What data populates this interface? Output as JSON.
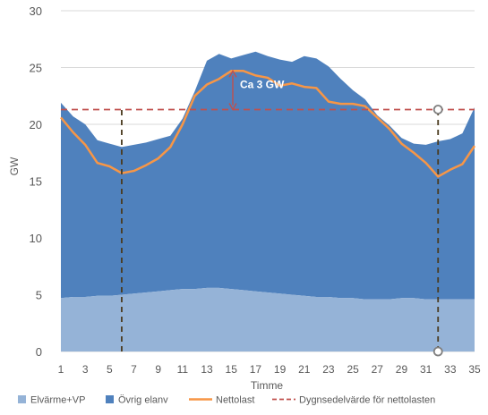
{
  "chart_data": {
    "type": "area",
    "xlabel": "Timme",
    "ylabel": "GW",
    "xlim": [
      1,
      35
    ],
    "ylim": [
      0,
      30
    ],
    "y_ticks": [
      0,
      5,
      10,
      15,
      20,
      25,
      30
    ],
    "x_ticks": [
      1,
      3,
      5,
      7,
      9,
      11,
      13,
      15,
      17,
      19,
      21,
      23,
      25,
      27,
      29,
      31,
      33,
      35
    ],
    "grid": "horizontal",
    "legend_position": "bottom",
    "x": [
      1,
      2,
      3,
      4,
      5,
      6,
      7,
      8,
      9,
      10,
      11,
      12,
      13,
      14,
      15,
      16,
      17,
      18,
      19,
      20,
      21,
      22,
      23,
      24,
      25,
      26,
      27,
      28,
      29,
      30,
      31,
      32,
      33,
      34,
      35
    ],
    "series": [
      {
        "name": "Elvärme+VP",
        "kind": "area",
        "color": "#95b3d7",
        "values": [
          4.7,
          4.8,
          4.8,
          4.9,
          4.9,
          5.0,
          5.1,
          5.2,
          5.3,
          5.4,
          5.5,
          5.5,
          5.6,
          5.6,
          5.5,
          5.4,
          5.3,
          5.2,
          5.1,
          5.0,
          4.9,
          4.8,
          4.8,
          4.7,
          4.7,
          4.6,
          4.6,
          4.6,
          4.7,
          4.7,
          4.6,
          4.6,
          4.6,
          4.6,
          4.6
        ]
      },
      {
        "name": "Övrig elanv",
        "kind": "area",
        "color": "#4f81bd",
        "values": [
          17.2,
          15.9,
          15.2,
          13.7,
          13.4,
          13.0,
          13.1,
          13.2,
          13.4,
          13.6,
          15.0,
          17.4,
          20.0,
          20.6,
          20.3,
          20.7,
          21.1,
          20.8,
          20.6,
          20.5,
          21.1,
          21.0,
          20.3,
          19.3,
          18.3,
          17.6,
          16.2,
          15.3,
          14.1,
          13.6,
          13.6,
          13.9,
          14.1,
          14.6,
          16.9
        ]
      },
      {
        "name": "Nettolast",
        "kind": "line",
        "color": "#f79646",
        "values": [
          20.6,
          19.3,
          18.2,
          16.6,
          16.3,
          15.7,
          15.9,
          16.4,
          17.0,
          18.0,
          20.0,
          22.5,
          23.5,
          24.0,
          24.7,
          24.7,
          24.3,
          24.1,
          23.4,
          23.6,
          23.3,
          23.2,
          22.0,
          21.8,
          21.8,
          21.6,
          20.6,
          19.6,
          18.3,
          17.5,
          16.6,
          15.4,
          16.0,
          16.5,
          18.1
        ]
      },
      {
        "name": "Dygnsedelvärde för nettolasten",
        "kind": "dashed",
        "color": "#c0504d",
        "values": [
          21.3,
          21.3,
          21.3,
          21.3,
          21.3,
          21.3,
          21.3,
          21.3,
          21.3,
          21.3,
          21.3,
          21.3,
          21.3,
          21.3,
          21.3,
          21.3,
          21.3,
          21.3,
          21.3,
          21.3,
          21.3,
          21.3,
          21.3,
          21.3,
          21.3,
          21.3,
          21.3,
          21.3,
          21.3,
          21.3,
          21.3,
          21.3,
          21.3,
          21.3,
          21.3
        ]
      }
    ],
    "annotations": [
      {
        "text": "Ca 3 GW",
        "x": 15.5,
        "y": 23.5,
        "arrow_from": 21.3,
        "arrow_to": 24.7
      }
    ],
    "reference_lines": [
      {
        "x": 6,
        "y_from": 0,
        "y_to": 21.3,
        "style": "dashed",
        "color": "#4a3a1e"
      },
      {
        "x": 32,
        "y_from": 0,
        "y_to": 21.3,
        "style": "dashed",
        "color": "#4a3a1e",
        "end_markers": "circle"
      }
    ]
  }
}
